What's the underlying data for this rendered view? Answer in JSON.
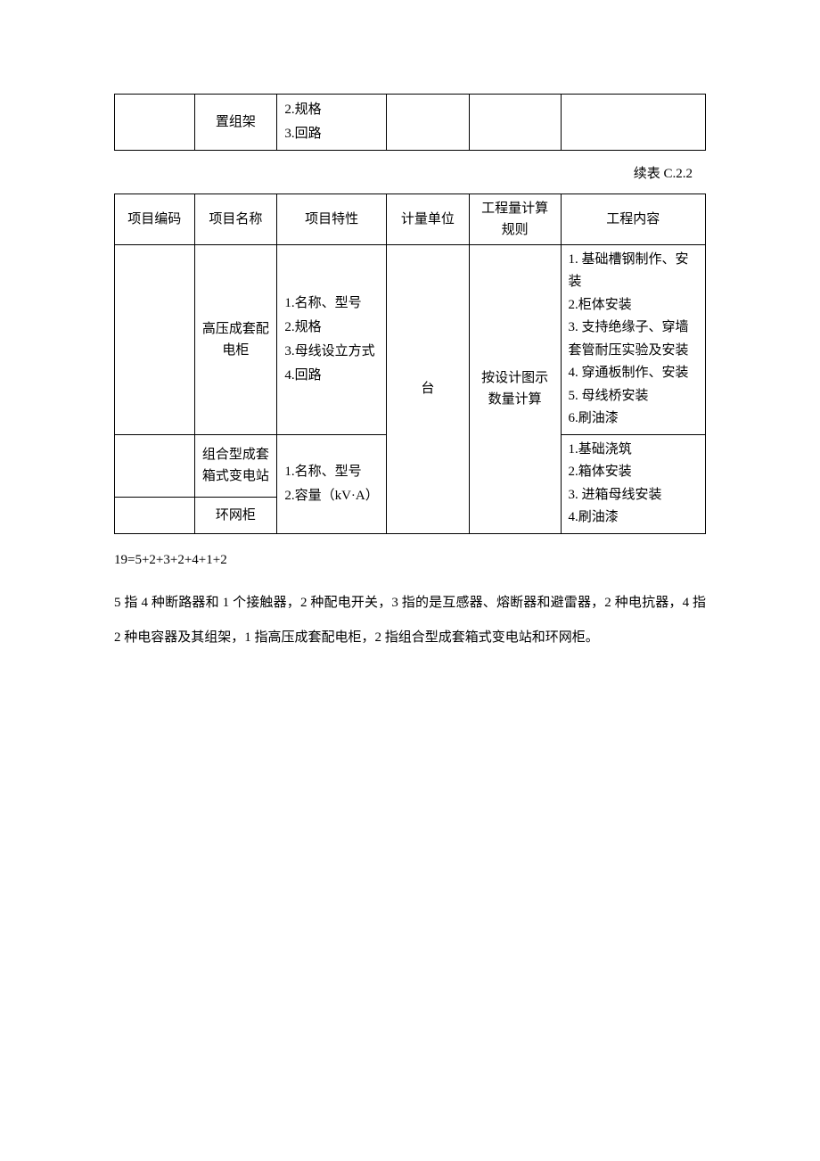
{
  "table1": {
    "row": {
      "col1": "",
      "col2": "置组架",
      "col3": "2.规格\n3.回路",
      "col4": "",
      "col5": "",
      "col6": ""
    }
  },
  "caption": "续表 C.2.2",
  "table2": {
    "headers": {
      "c1": "项目编码",
      "c2": "项目名称",
      "c3": "项目特性",
      "c4": "计量单位",
      "c5": "工程量计算规则",
      "c6": "工程内容"
    },
    "rows": {
      "r1": {
        "c1": "",
        "c2": "高压成套配电柜",
        "c3": "1.名称、型号\n2.规格\n3.母线设立方式\n4.回路",
        "c6": "1. 基础槽钢制作、安装\n2.柜体安装\n3. 支持绝缘子、穿墙套管耐压实验及安装\n4. 穿通板制作、安装\n5. 母线桥安装\n6.刷油漆"
      },
      "shared_c4": "台",
      "shared_c5": "按设计图示数量计算",
      "r2": {
        "c1": "",
        "c2": "组合型成套箱式变电站"
      },
      "r3": {
        "c1": "",
        "c2": "环网柜"
      },
      "shared_c3_r2r3": "1.名称、型号\n2.容量（kV·A）",
      "shared_c6_r2r3": "1.基础浇筑\n2.箱体安装\n3. 进箱母线安装\n4.刷油漆"
    }
  },
  "note": "19=5+2+3+2+4+1+2",
  "explain": "5 指 4 种断路器和 1 个接触器，2 种配电开关，3 指的是互感器、熔断器和避雷器，2 种电抗器，4 指 2 种电容器及其组架，1 指高压成套配电柜，2 指组合型成套箱式变电站和环网柜。"
}
